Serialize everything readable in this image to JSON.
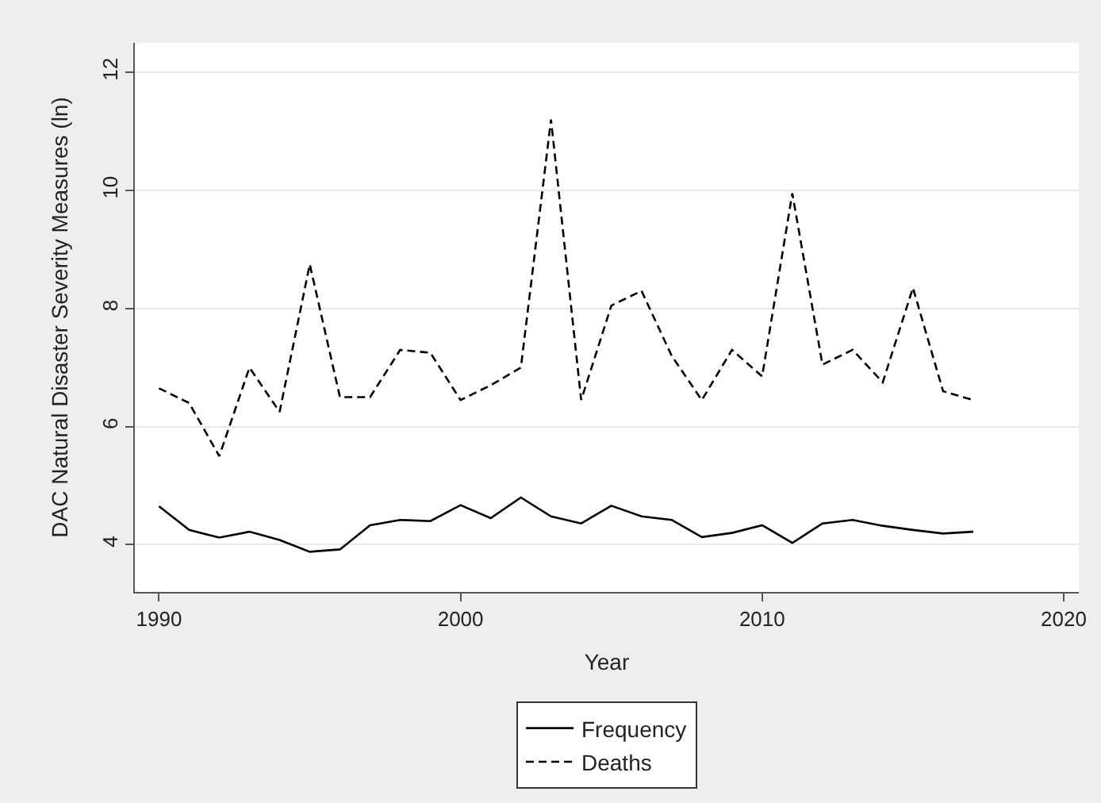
{
  "chart_data": {
    "type": "line",
    "xlabel": "Year",
    "ylabel": "DAC Natural Disaster Severity Measures (ln)",
    "x": [
      1990,
      1991,
      1992,
      1993,
      1994,
      1995,
      1996,
      1997,
      1998,
      1999,
      2000,
      2001,
      2002,
      2003,
      2004,
      2005,
      2006,
      2007,
      2008,
      2009,
      2010,
      2011,
      2012,
      2013,
      2014,
      2015,
      2016,
      2017
    ],
    "series": [
      {
        "name": "Frequency",
        "color": "#000000",
        "line_style": "solid",
        "values": [
          4.65,
          4.25,
          4.12,
          4.22,
          4.08,
          3.88,
          3.92,
          4.33,
          4.42,
          4.4,
          4.67,
          4.45,
          4.8,
          4.48,
          4.36,
          4.66,
          4.48,
          4.42,
          4.13,
          4.2,
          4.33,
          4.03,
          4.36,
          4.42,
          4.32,
          4.25,
          4.19,
          4.22
        ]
      },
      {
        "name": "Deaths",
        "color": "#000000",
        "line_style": "dashed",
        "values": [
          6.65,
          6.4,
          5.5,
          7.0,
          6.25,
          8.75,
          6.5,
          6.5,
          7.3,
          7.25,
          6.45,
          6.7,
          7.0,
          11.2,
          6.45,
          8.05,
          8.3,
          7.2,
          6.45,
          7.3,
          6.85,
          9.95,
          7.05,
          7.3,
          6.75,
          8.35,
          6.6,
          6.45
        ]
      }
    ],
    "xlim": [
      1989.2,
      2020.5
    ],
    "xticks": [
      1990,
      2000,
      2010,
      2020
    ],
    "ylim": [
      3.2,
      12.5
    ],
    "yticks": [
      4,
      6,
      8,
      10,
      12
    ],
    "grid": "y",
    "legend": "bottom",
    "marker": "none"
  }
}
